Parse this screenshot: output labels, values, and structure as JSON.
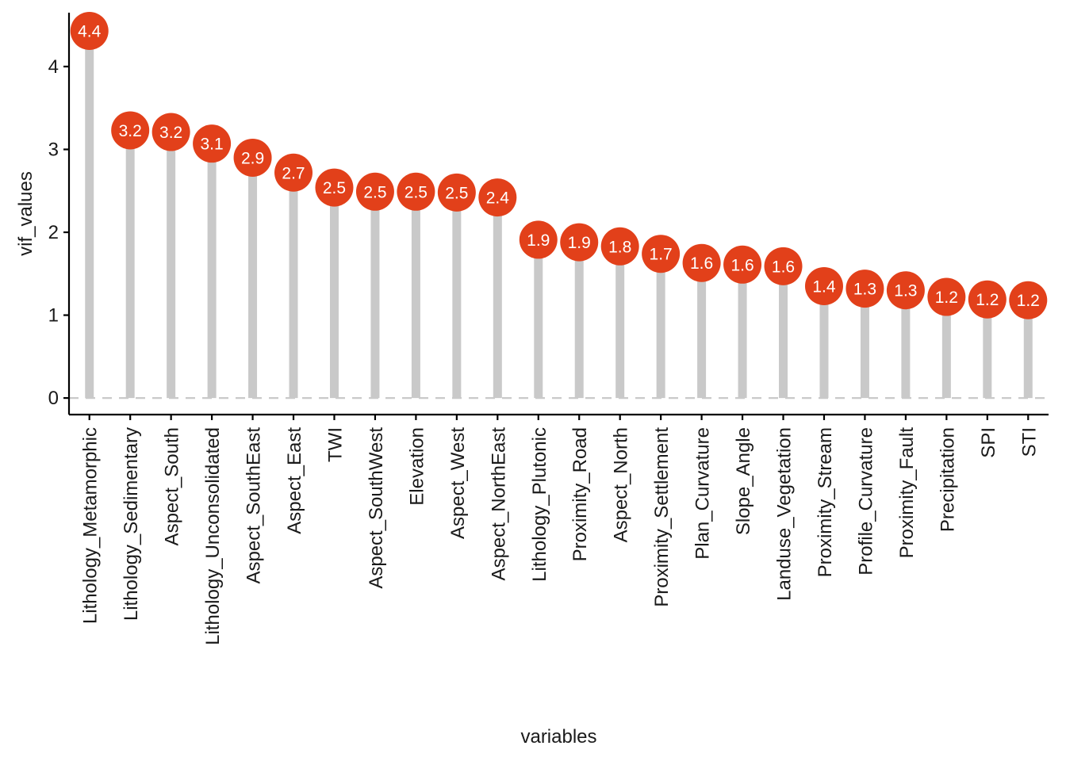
{
  "chart_data": {
    "type": "lollipop",
    "title": "",
    "xlabel": "variables",
    "ylabel": "vif_values",
    "ylim": [
      -0.2,
      4.65
    ],
    "yticks": [
      0,
      1,
      2,
      3,
      4
    ],
    "reference_line": 0,
    "grid": false,
    "legend": "none",
    "colors": {
      "point": "#E2401A",
      "stem": "#C9C9C9",
      "reference_line": "#C9C9C9",
      "axis": "#000000",
      "label_text": "#FFFFFF"
    },
    "categories": [
      "Lithology_Metamorphic",
      "Lithology_Sedimentary",
      "Aspect_South",
      "Lithology_Unconsolidated",
      "Aspect_SouthEast",
      "Aspect_East",
      "TWI",
      "Aspect_SouthWest",
      "Elevation",
      "Aspect_West",
      "Aspect_NorthEast",
      "Lithology_Plutonic",
      "Proximity_Road",
      "Aspect_North",
      "Proximity_Settlement",
      "Plan_Curvature",
      "Slope_Angle",
      "Landuse_Vegetation",
      "Proximity_Stream",
      "Profile_Curvature",
      "Proximity_Fault",
      "Precipitation",
      "SPI",
      "STI"
    ],
    "values": [
      4.43,
      3.23,
      3.21,
      3.07,
      2.9,
      2.72,
      2.54,
      2.49,
      2.49,
      2.48,
      2.42,
      1.91,
      1.88,
      1.83,
      1.74,
      1.63,
      1.61,
      1.59,
      1.35,
      1.32,
      1.3,
      1.22,
      1.19,
      1.18
    ],
    "labels": [
      "4.4",
      "3.2",
      "3.2",
      "3.1",
      "2.9",
      "2.7",
      "2.5",
      "2.5",
      "2.5",
      "2.5",
      "2.4",
      "1.9",
      "1.9",
      "1.8",
      "1.7",
      "1.6",
      "1.6",
      "1.6",
      "1.4",
      "1.3",
      "1.3",
      "1.2",
      "1.2",
      "1.2"
    ]
  }
}
